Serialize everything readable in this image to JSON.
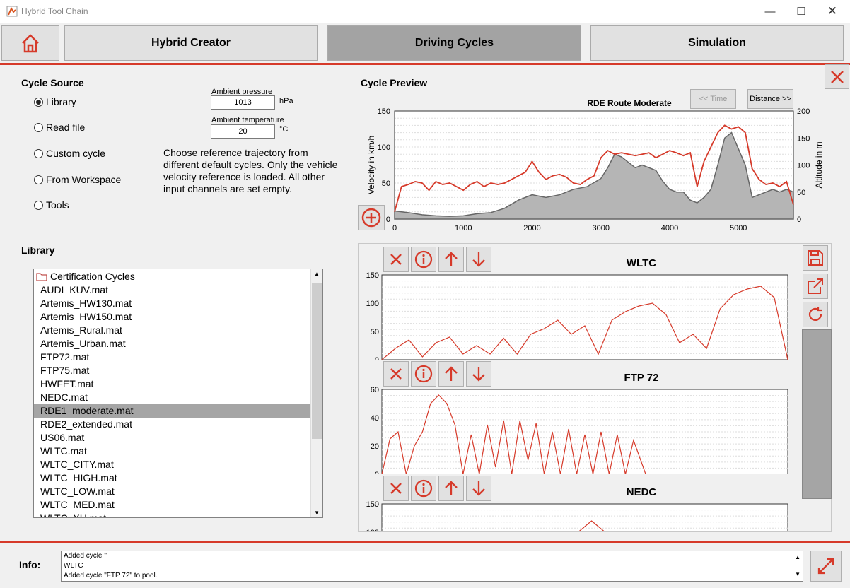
{
  "window": {
    "title": "Hybrid Tool Chain"
  },
  "tabs": {
    "creator": "Hybrid Creator",
    "cycles": "Driving Cycles",
    "simulation": "Simulation"
  },
  "source": {
    "title": "Cycle Source",
    "options": [
      "Library",
      "Read file",
      "Custom cycle",
      "From Workspace",
      "Tools"
    ],
    "selected": "Library",
    "pressure_label": "Ambient pressure",
    "pressure_value": "1013",
    "pressure_unit": "hPa",
    "temp_label": "Ambient temperature",
    "temp_value": "20",
    "temp_unit": "°C",
    "description": "Choose reference trajectory from different default cycles. Only the vehicle velocity reference is loaded. All other input channels are set empty."
  },
  "library": {
    "title": "Library",
    "folder": "Certification Cycles",
    "items": [
      "AUDI_KUV.mat",
      "Artemis_HW130.mat",
      "Artemis_HW150.mat",
      "Artemis_Rural.mat",
      "Artemis_Urban.mat",
      "FTP72.mat",
      "FTP75.mat",
      "HWFET.mat",
      "NEDC.mat",
      "RDE1_moderate.mat",
      "RDE2_extended.mat",
      "US06.mat",
      "WLTC.mat",
      "WLTC_CITY.mat",
      "WLTC_HIGH.mat",
      "WLTC_LOW.mat",
      "WLTC_MED.mat",
      "WLTC_XH.mat"
    ],
    "selected": "RDE1_moderate.mat"
  },
  "preview": {
    "title": "Cycle Preview",
    "time_btn": "<< Time",
    "distance_btn": "Distance >>"
  },
  "info": {
    "label": "Info:",
    "lines": [
      "Added cycle ''",
      "WLTC",
      "Added cycle \"FTP 72\" to pool."
    ]
  },
  "colors": {
    "accent": "#d63a2a",
    "selected": "#a5a5a5"
  },
  "chart_data": [
    {
      "type": "line",
      "title": "RDE Route Moderate",
      "xlabel": "",
      "ylabel": "Velocity in km/h",
      "ylabel_right": "Altitude in m",
      "xlim": [
        0,
        5800
      ],
      "ylim": [
        0,
        150
      ],
      "ylim_right": [
        0,
        200
      ],
      "xticks": [
        "0",
        "1000",
        "2000",
        "3000",
        "4000",
        "5000"
      ],
      "yticks": [
        "0",
        "50",
        "100",
        "150"
      ],
      "yticks_right": [
        "0",
        "50",
        "100",
        "150",
        "200"
      ],
      "series": [
        {
          "color": "#d63a2a",
          "x": [
            0,
            100,
            200,
            300,
            400,
            500,
            600,
            700,
            800,
            900,
            1000,
            1100,
            1200,
            1300,
            1400,
            1500,
            1600,
            1700,
            1800,
            1900,
            2000,
            2100,
            2200,
            2300,
            2400,
            2500,
            2600,
            2700,
            2800,
            2900,
            3000,
            3100,
            3200,
            3300,
            3400,
            3500,
            3600,
            3700,
            3800,
            3900,
            4000,
            4100,
            4200,
            4300,
            4400,
            4500,
            4600,
            4700,
            4800,
            4900,
            5000,
            5100,
            5200,
            5300,
            5400,
            5500,
            5600,
            5700,
            5800
          ],
          "y": [
            10,
            45,
            48,
            52,
            50,
            40,
            52,
            48,
            50,
            45,
            40,
            48,
            52,
            45,
            50,
            48,
            50,
            55,
            60,
            65,
            80,
            65,
            55,
            60,
            62,
            58,
            50,
            48,
            55,
            60,
            85,
            95,
            90,
            92,
            90,
            88,
            90,
            92,
            85,
            90,
            95,
            92,
            88,
            92,
            45,
            80,
            100,
            120,
            130,
            125,
            128,
            120,
            70,
            55,
            48,
            50,
            45,
            52,
            20
          ]
        },
        {
          "color": "#666666",
          "fill": "#b5b5b5",
          "x": [
            0,
            200,
            400,
            600,
            800,
            1000,
            1200,
            1400,
            1600,
            1800,
            2000,
            2200,
            2400,
            2600,
            2800,
            3000,
            3100,
            3200,
            3300,
            3400,
            3500,
            3600,
            3700,
            3800,
            3900,
            4000,
            4100,
            4200,
            4300,
            4400,
            4500,
            4600,
            4700,
            4800,
            4900,
            5000,
            5100,
            5200,
            5300,
            5400,
            5500,
            5600,
            5700,
            5800
          ],
          "y": [
            15,
            12,
            8,
            6,
            5,
            6,
            10,
            12,
            20,
            35,
            45,
            40,
            45,
            55,
            60,
            75,
            95,
            120,
            115,
            105,
            95,
            100,
            95,
            90,
            70,
            55,
            50,
            50,
            35,
            30,
            40,
            55,
            100,
            150,
            160,
            130,
            100,
            40,
            45,
            50,
            55,
            50,
            55,
            50
          ]
        }
      ]
    },
    {
      "type": "line",
      "title": "WLTC",
      "xlim": [
        0,
        1800
      ],
      "ylim": [
        0,
        150
      ],
      "yticks": [
        "0",
        "50",
        "100",
        "150"
      ],
      "series": [
        {
          "color": "#d63a2a",
          "x": [
            0,
            60,
            120,
            180,
            240,
            300,
            360,
            420,
            480,
            540,
            600,
            660,
            720,
            780,
            840,
            900,
            960,
            1020,
            1080,
            1140,
            1200,
            1260,
            1320,
            1380,
            1440,
            1500,
            1560,
            1620,
            1680,
            1740,
            1800
          ],
          "y": [
            0,
            20,
            35,
            5,
            30,
            40,
            10,
            25,
            10,
            38,
            10,
            45,
            55,
            70,
            45,
            60,
            10,
            70,
            85,
            95,
            100,
            80,
            30,
            45,
            20,
            90,
            115,
            125,
            130,
            110,
            0
          ]
        }
      ]
    },
    {
      "type": "line",
      "title": "FTP 72",
      "xlim": [
        0,
        2000
      ],
      "ylim": [
        0,
        60
      ],
      "yticks": [
        "0",
        "20",
        "40",
        "60"
      ],
      "series": [
        {
          "color": "#d63a2a",
          "x": [
            0,
            40,
            80,
            120,
            160,
            200,
            240,
            280,
            320,
            360,
            400,
            440,
            480,
            520,
            560,
            600,
            640,
            680,
            720,
            760,
            800,
            840,
            880,
            920,
            960,
            1000,
            1040,
            1080,
            1120,
            1160,
            1200,
            1240,
            1300,
            1370
          ],
          "y": [
            0,
            25,
            30,
            0,
            20,
            30,
            50,
            56,
            50,
            35,
            0,
            28,
            0,
            35,
            5,
            38,
            0,
            38,
            10,
            36,
            0,
            30,
            0,
            32,
            0,
            28,
            0,
            30,
            0,
            28,
            0,
            24,
            0,
            0
          ]
        }
      ]
    },
    {
      "type": "line",
      "title": "NEDC",
      "xlim": [
        0,
        1200
      ],
      "ylim": [
        0,
        150
      ],
      "yticks": [
        "100",
        "150"
      ],
      "series": [
        {
          "color": "#d63a2a",
          "x": [
            580,
            600,
            620,
            640,
            660
          ],
          "y": [
            100,
            110,
            120,
            110,
            100
          ]
        }
      ]
    }
  ]
}
